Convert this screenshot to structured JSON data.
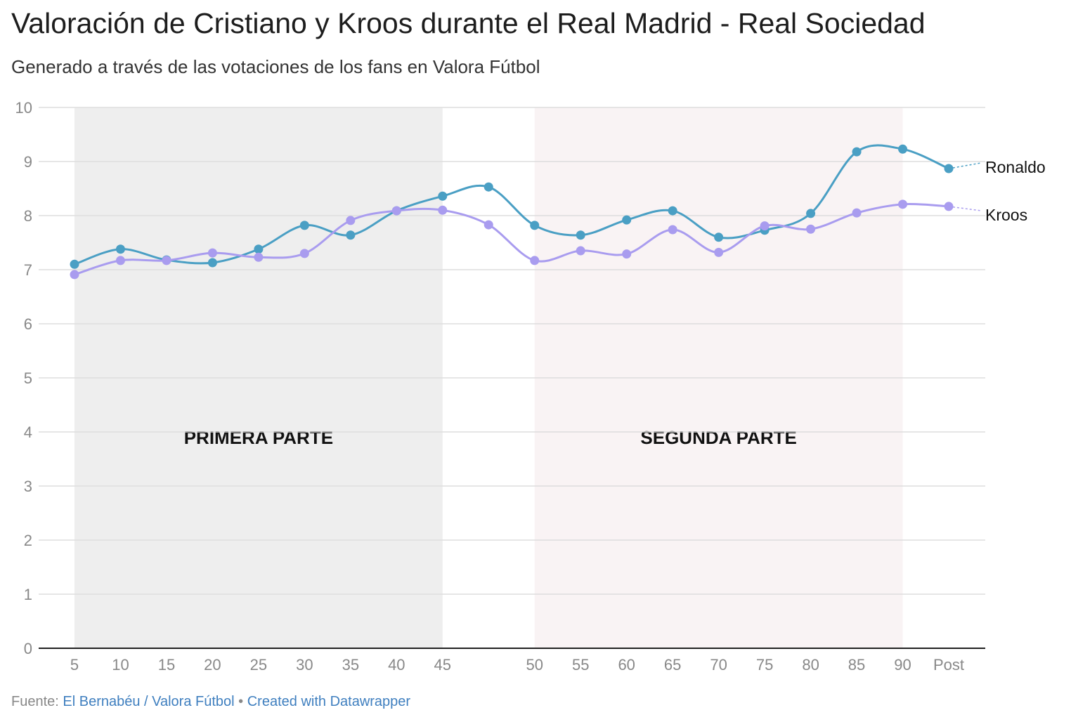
{
  "chart_data": {
    "type": "line",
    "title": "Valoración de Cristiano y Kroos durante el Real Madrid - Real Sociedad",
    "subtitle": "Generado a través de las votaciones de los fans en Valora Fútbol",
    "categories": [
      "5",
      "10",
      "15",
      "20",
      "25",
      "30",
      "35",
      "40",
      "45",
      "",
      "50",
      "55",
      "60",
      "65",
      "70",
      "75",
      "80",
      "85",
      "90",
      "Post"
    ],
    "ylim": [
      0,
      10
    ],
    "yticks": [
      "0",
      "1",
      "2",
      "3",
      "4",
      "5",
      "6",
      "7",
      "8",
      "9",
      "10"
    ],
    "grid": true,
    "series": [
      {
        "name": "Ronaldo",
        "color": "#4a9fc4",
        "values": [
          7.1,
          7.38,
          7.18,
          7.13,
          7.38,
          7.82,
          7.64,
          8.09,
          8.36,
          8.53,
          7.82,
          7.64,
          7.92,
          8.09,
          7.6,
          7.73,
          8.04,
          9.18,
          9.23,
          8.87
        ]
      },
      {
        "name": "Kroos",
        "color": "#a99cef",
        "values": [
          6.91,
          7.17,
          7.17,
          7.31,
          7.23,
          7.3,
          7.91,
          8.09,
          8.1,
          7.83,
          7.17,
          7.35,
          7.29,
          7.74,
          7.32,
          7.81,
          7.75,
          8.05,
          8.21,
          8.17
        ]
      }
    ],
    "ranges": [
      {
        "label": "PRIMERA PARTE",
        "from": "5",
        "to": "45",
        "color": "#eeeeee"
      },
      {
        "label": "SEGUNDA PARTE",
        "from": "50",
        "to": "90",
        "color": "#f9f3f4"
      }
    ]
  },
  "footer": {
    "source_label": "Fuente:",
    "source": "El Bernabéu / Valora Fútbol",
    "sep": " • ",
    "credit": "Created with Datawrapper"
  }
}
